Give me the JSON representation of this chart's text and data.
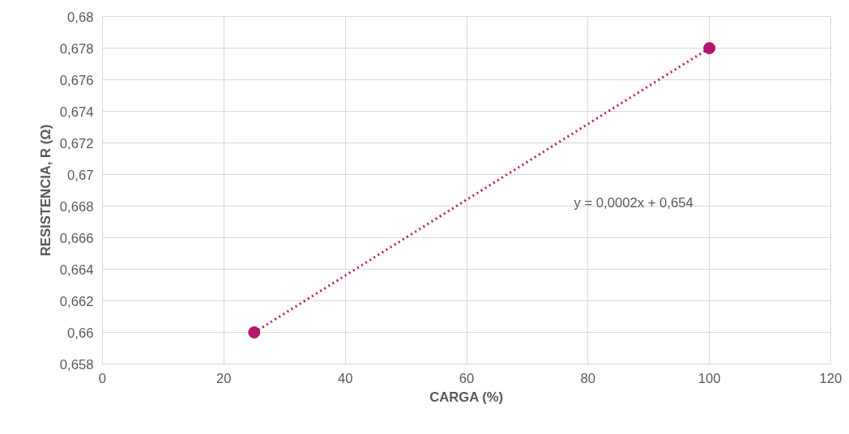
{
  "chart_data": {
    "type": "scatter",
    "xlabel": "CARGA (%)",
    "ylabel": "RESISTENCIA, R (Ω)",
    "x": [
      25,
      100
    ],
    "series": [
      {
        "color": "#b5176b",
        "values": [
          0.66,
          0.678
        ],
        "marker": "circle"
      },
      {
        "type": "line",
        "color": "#b5176b",
        "x": [
          25,
          100
        ],
        "values": [
          0.66,
          0.678
        ],
        "line_style": "dotted"
      }
    ],
    "annotations": [
      "y = 0,0002x + 0,654"
    ],
    "xlim": [
      0,
      120
    ],
    "xticks": [
      0,
      20,
      40,
      60,
      80,
      100,
      120
    ],
    "ylim": [
      0.658,
      0.68
    ],
    "yticks": [
      {
        "value": 0.658,
        "label": "0,658"
      },
      {
        "value": 0.66,
        "label": "0,66"
      },
      {
        "value": 0.662,
        "label": "0,662"
      },
      {
        "value": 0.664,
        "label": "0,664"
      },
      {
        "value": 0.666,
        "label": "0,666"
      },
      {
        "value": 0.668,
        "label": "0,668"
      },
      {
        "value": 0.67,
        "label": "0,67"
      },
      {
        "value": 0.672,
        "label": "0,672"
      },
      {
        "value": 0.674,
        "label": "0,674"
      },
      {
        "value": 0.676,
        "label": "0,676"
      },
      {
        "value": 0.678,
        "label": "0,678"
      },
      {
        "value": 0.68,
        "label": "0,68"
      }
    ],
    "grid": true
  }
}
